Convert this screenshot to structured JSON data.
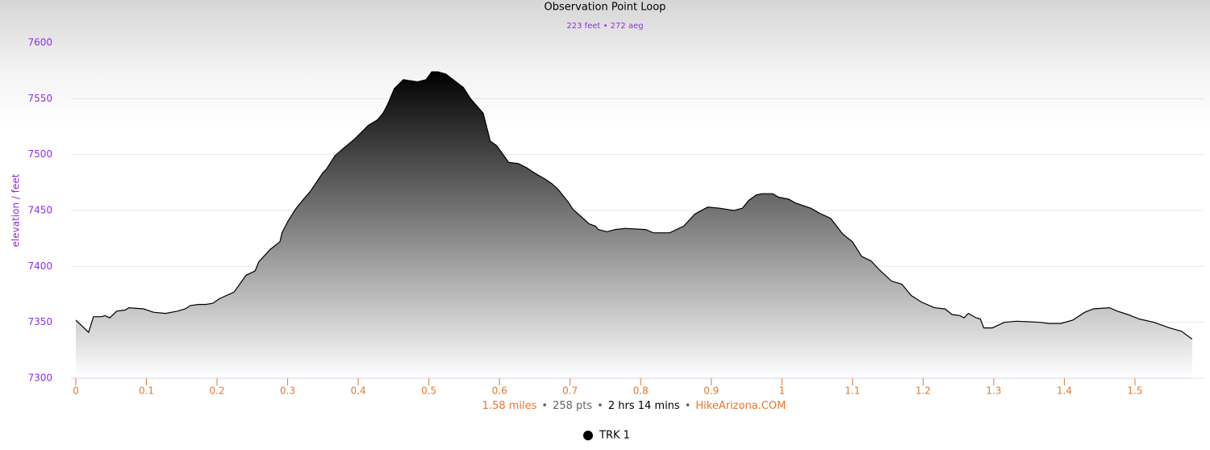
{
  "chart_data": {
    "type": "area",
    "title": "Observation Point Loop",
    "subtitle": "223 feet • 272 aeg",
    "subtitle_color": "#8e2de2",
    "y_label": "elevation / feet",
    "y_color": "#8e2de2",
    "x_color": "#e8762b",
    "grid": true,
    "xlim": [
      0,
      1.58
    ],
    "xticks": [
      0,
      0.1,
      0.2,
      0.3,
      0.4,
      0.5,
      0.6,
      0.7,
      0.8,
      0.9,
      1,
      1.1,
      1.2,
      1.3,
      1.4,
      1.5
    ],
    "ylim": [
      7300,
      7600
    ],
    "yticks": [
      7300,
      7350,
      7400,
      7450,
      7500,
      7550,
      7600
    ],
    "x": [
      0,
      0.018,
      0.025,
      0.037,
      0.041,
      0.048,
      0.058,
      0.07,
      0.075,
      0.096,
      0.11,
      0.127,
      0.144,
      0.155,
      0.162,
      0.174,
      0.184,
      0.194,
      0.203,
      0.224,
      0.232,
      0.241,
      0.254,
      0.259,
      0.275,
      0.289,
      0.292,
      0.3,
      0.311,
      0.321,
      0.332,
      0.35,
      0.355,
      0.367,
      0.378,
      0.395,
      0.414,
      0.427,
      0.435,
      0.441,
      0.451,
      0.464,
      0.484,
      0.496,
      0.504,
      0.513,
      0.524,
      0.549,
      0.559,
      0.577,
      0.587,
      0.596,
      0.613,
      0.627,
      0.639,
      0.651,
      0.665,
      0.674,
      0.683,
      0.698,
      0.704,
      0.713,
      0.727,
      0.736,
      0.74,
      0.752,
      0.764,
      0.778,
      0.807,
      0.818,
      0.841,
      0.861,
      0.877,
      0.895,
      0.912,
      0.932,
      0.944,
      0.953,
      0.964,
      0.972,
      0.987,
      0.995,
      1.01,
      1.018,
      1.041,
      1.052,
      1.069,
      1.086,
      1.1,
      1.113,
      1.126,
      1.138,
      1.155,
      1.17,
      1.183,
      1.198,
      1.216,
      1.231,
      1.241,
      1.252,
      1.258,
      1.264,
      1.275,
      1.281,
      1.286,
      1.298,
      1.315,
      1.332,
      1.366,
      1.378,
      1.395,
      1.412,
      1.429,
      1.441,
      1.464,
      1.475,
      1.49,
      1.506,
      1.527,
      1.549,
      1.566,
      1.581
    ],
    "series": [
      {
        "name": "TRK 1",
        "color": "#000000",
        "values": [
          7352,
          7341,
          7355,
          7355,
          7356,
          7354,
          7360,
          7361,
          7363,
          7362,
          7359,
          7358,
          7360,
          7362,
          7365,
          7366,
          7366,
          7367,
          7371,
          7377,
          7384,
          7392,
          7396,
          7404,
          7415,
          7422,
          7430,
          7440,
          7451,
          7459,
          7467,
          7484,
          7487,
          7499,
          7505,
          7514,
          7526,
          7531,
          7537,
          7544,
          7559,
          7567,
          7565,
          7567,
          7574,
          7574,
          7572,
          7560,
          7550,
          7537,
          7512,
          7508,
          7493,
          7492,
          7488,
          7483,
          7478,
          7474,
          7469,
          7457,
          7451,
          7446,
          7438,
          7436,
          7433,
          7431,
          7433,
          7434,
          7433,
          7430,
          7430,
          7436,
          7447,
          7453,
          7452,
          7450,
          7452,
          7459,
          7464,
          7465,
          7465,
          7462,
          7460,
          7457,
          7452,
          7448,
          7443,
          7429,
          7422,
          7409,
          7405,
          7397,
          7387,
          7384,
          7374,
          7368,
          7363,
          7362,
          7357,
          7356,
          7354,
          7358,
          7354,
          7353,
          7345,
          7345,
          7350,
          7351,
          7350,
          7349,
          7349,
          7352,
          7359,
          7362,
          7363,
          7360,
          7357,
          7353,
          7350,
          7345,
          7342,
          7335
        ]
      }
    ],
    "credits": {
      "separator": "•",
      "items": [
        {
          "text": "1.58 miles",
          "color": "#e8762b"
        },
        {
          "text": "258 pts",
          "color": "#666666"
        },
        {
          "text": "2 hrs 14 mins",
          "color": "#000000"
        },
        {
          "text": "HikeArizona.COM",
          "color": "#e8762b"
        }
      ]
    }
  }
}
